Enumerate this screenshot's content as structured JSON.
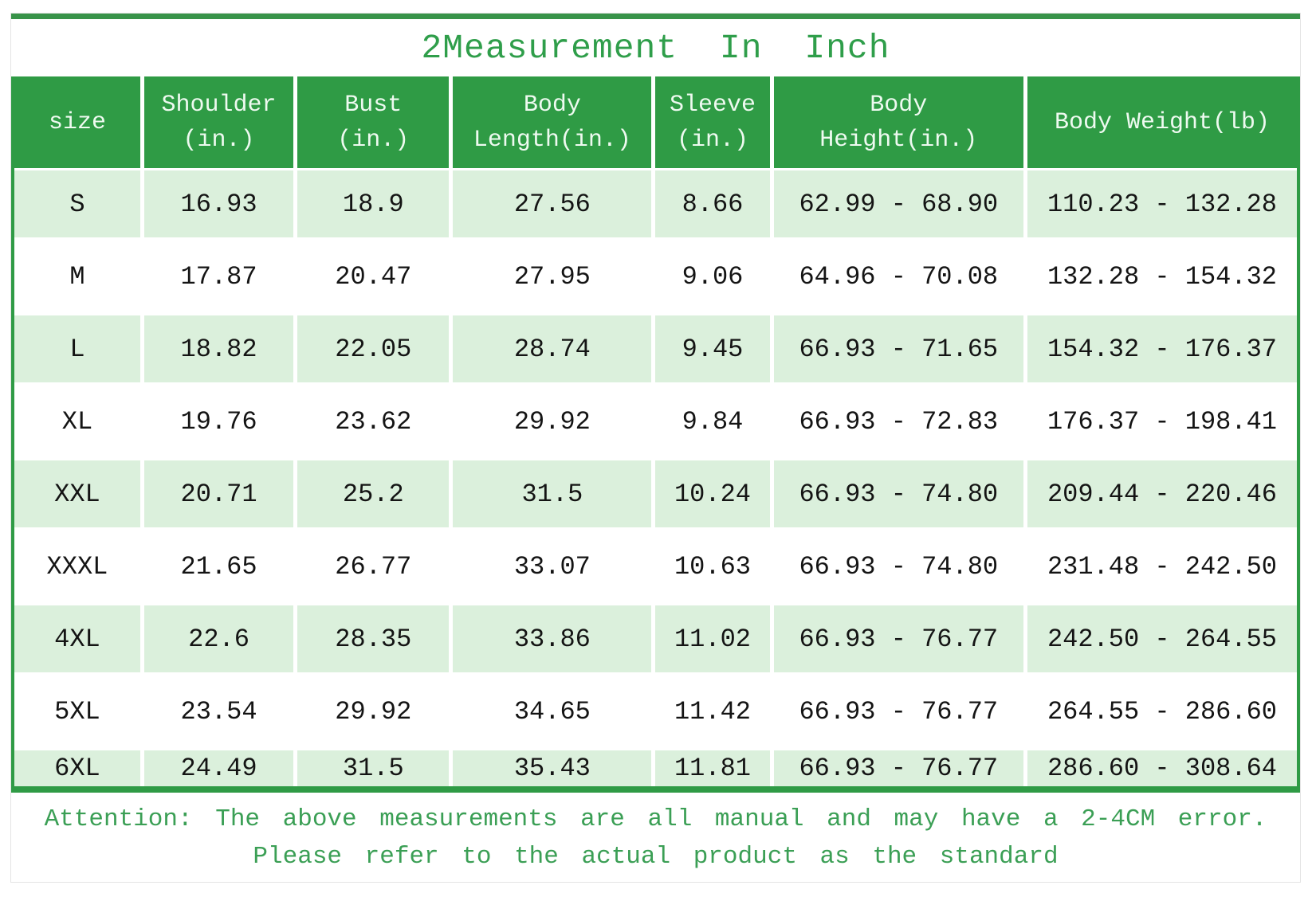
{
  "title": "2Measurement In Inch",
  "table": {
    "columns": [
      {
        "line1": "size",
        "line2": ""
      },
      {
        "line1": "Shoulder",
        "line2": "(in.)"
      },
      {
        "line1": "Bust",
        "line2": "(in.)"
      },
      {
        "line1": "Body",
        "line2": "Length(in.)"
      },
      {
        "line1": "Sleeve",
        "line2": "(in.)"
      },
      {
        "line1": "Body",
        "line2": "Height(in.)"
      },
      {
        "line1": "Body Weight(lb)",
        "line2": ""
      }
    ],
    "column_keys": [
      "size",
      "shoulder_in",
      "bust_in",
      "body_length_in",
      "sleeve_in",
      "body_height_in",
      "body_weight_lb"
    ],
    "rows": [
      [
        "S",
        "16.93",
        "18.9",
        "27.56",
        "8.66",
        "62.99 - 68.90",
        "110.23 - 132.28"
      ],
      [
        "M",
        "17.87",
        "20.47",
        "27.95",
        "9.06",
        "64.96 - 70.08",
        "132.28 - 154.32"
      ],
      [
        "L",
        "18.82",
        "22.05",
        "28.74",
        "9.45",
        "66.93 - 71.65",
        "154.32 - 176.37"
      ],
      [
        "XL",
        "19.76",
        "23.62",
        "29.92",
        "9.84",
        "66.93 - 72.83",
        "176.37 - 198.41"
      ],
      [
        "XXL",
        "20.71",
        "25.2",
        "31.5",
        "10.24",
        "66.93 - 74.80",
        "209.44 - 220.46"
      ],
      [
        "XXXL",
        "21.65",
        "26.77",
        "33.07",
        "10.63",
        "66.93 - 74.80",
        "231.48 - 242.50"
      ],
      [
        "4XL",
        "22.6",
        "28.35",
        "33.86",
        "11.02",
        "66.93 - 76.77",
        "242.50 - 264.55"
      ],
      [
        "5XL",
        "23.54",
        "29.92",
        "34.65",
        "11.42",
        "66.93 - 76.77",
        "264.55 - 286.60"
      ],
      [
        "6XL",
        "24.49",
        "31.5",
        "35.43",
        "11.81",
        "66.93 - 76.77",
        "286.60 - 308.64"
      ]
    ]
  },
  "footer": {
    "line1": "Attention: The above measurements are all manual and may have a 2-4CM error.",
    "line2": "Please refer to the actual product as the standard"
  },
  "colors": {
    "accent_green": "#2f9b45",
    "top_bar_green": "#389349",
    "row_light_green": "#dbf0dc",
    "note_text_green": "#3b9f55",
    "header_text": "#eefaf0",
    "cell_text": "#141414",
    "outer_border_gray": "#e4e4e4"
  }
}
